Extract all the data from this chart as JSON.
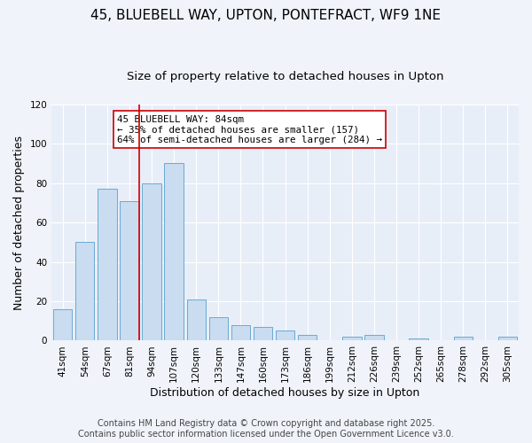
{
  "title": "45, BLUEBELL WAY, UPTON, PONTEFRACT, WF9 1NE",
  "subtitle": "Size of property relative to detached houses in Upton",
  "xlabel": "Distribution of detached houses by size in Upton",
  "ylabel": "Number of detached properties",
  "categories": [
    "41sqm",
    "54sqm",
    "67sqm",
    "81sqm",
    "94sqm",
    "107sqm",
    "120sqm",
    "133sqm",
    "147sqm",
    "160sqm",
    "173sqm",
    "186sqm",
    "199sqm",
    "212sqm",
    "226sqm",
    "239sqm",
    "252sqm",
    "265sqm",
    "278sqm",
    "292sqm",
    "305sqm"
  ],
  "values": [
    16,
    50,
    77,
    71,
    80,
    90,
    21,
    12,
    8,
    7,
    5,
    3,
    0,
    2,
    3,
    0,
    1,
    0,
    2,
    0,
    2
  ],
  "bar_color": "#c9dcf0",
  "bar_edge_color": "#6aaad4",
  "highlight_index": 3,
  "highlight_line_color": "#cc0000",
  "ylim": [
    0,
    120
  ],
  "yticks": [
    0,
    20,
    40,
    60,
    80,
    100,
    120
  ],
  "annotation_title": "45 BLUEBELL WAY: 84sqm",
  "annotation_line1": "← 35% of detached houses are smaller (157)",
  "annotation_line2": "64% of semi-detached houses are larger (284) →",
  "annotation_box_color": "#ffffff",
  "annotation_box_edge": "#cc0000",
  "footer_line1": "Contains HM Land Registry data © Crown copyright and database right 2025.",
  "footer_line2": "Contains public sector information licensed under the Open Government Licence v3.0.",
  "background_color": "#f0f4fa",
  "plot_bg_color": "#e8eef8",
  "grid_color": "#ffffff",
  "title_fontsize": 11,
  "subtitle_fontsize": 9.5,
  "axis_label_fontsize": 9,
  "tick_fontsize": 7.5,
  "footer_fontsize": 7
}
